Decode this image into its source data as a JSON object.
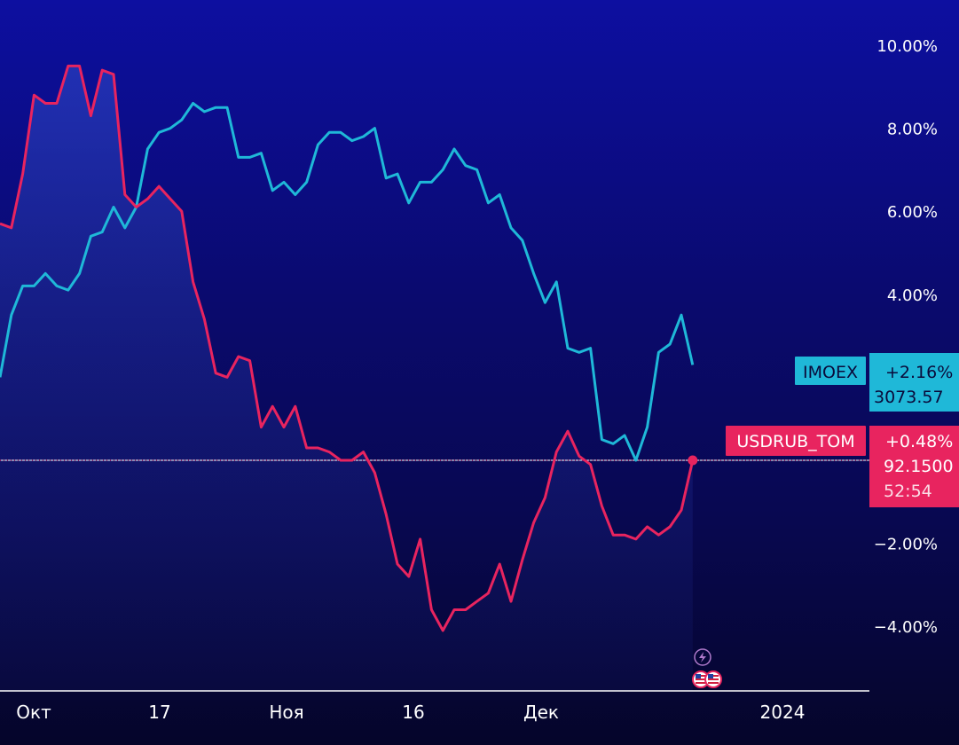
{
  "chart_data": {
    "type": "line",
    "y_unit": "%",
    "ylim": [
      -5.5,
      10.5
    ],
    "y_ticks": [
      "10.00%",
      "8.00%",
      "6.00%",
      "4.00%",
      "−2.00%",
      "−4.00%"
    ],
    "y_tick_values": [
      10,
      8,
      6,
      4,
      -2,
      -4
    ],
    "x_ticks": [
      "Окт",
      "17",
      "Ноя",
      "16",
      "Дек",
      "2024"
    ],
    "grid": false,
    "series": [
      {
        "name": "IMOEX",
        "color": "#1fb8d8",
        "change_label": "+2.16%",
        "price_label": "3073.57",
        "values": [
          2.0,
          3.5,
          4.2,
          4.2,
          4.5,
          4.2,
          4.1,
          4.5,
          5.4,
          5.5,
          6.1,
          5.6,
          6.1,
          7.5,
          7.9,
          8.0,
          8.2,
          8.6,
          8.4,
          8.5,
          8.5,
          7.3,
          7.3,
          7.4,
          6.5,
          6.7,
          6.4,
          6.7,
          7.6,
          7.9,
          7.9,
          7.7,
          7.8,
          8.0,
          6.8,
          6.9,
          6.2,
          6.7,
          6.7,
          7.0,
          7.5,
          7.1,
          7.0,
          6.2,
          6.4,
          5.6,
          5.3,
          4.5,
          3.8,
          4.3,
          2.7,
          2.6,
          2.7,
          0.5,
          0.4,
          0.6,
          0.0,
          0.8,
          2.6,
          2.8,
          3.5,
          2.3
        ]
      },
      {
        "name": "USDRUB_TOM",
        "color": "#e8245f",
        "change_label": "+0.48%",
        "price_label": "92.1500",
        "time_label": "52:54",
        "values": [
          5.7,
          5.6,
          6.9,
          8.8,
          8.6,
          8.6,
          9.5,
          9.5,
          8.3,
          9.4,
          9.3,
          6.4,
          6.1,
          6.3,
          6.6,
          6.3,
          6.0,
          4.3,
          3.4,
          2.1,
          2.0,
          2.5,
          2.4,
          0.8,
          1.3,
          0.8,
          1.3,
          0.3,
          0.3,
          0.2,
          0.0,
          0.0,
          0.2,
          -0.3,
          -1.3,
          -2.5,
          -2.8,
          -1.9,
          -3.6,
          -4.1,
          -3.6,
          -3.6,
          -3.4,
          -3.2,
          -2.5,
          -3.4,
          -2.4,
          -1.5,
          -0.9,
          0.2,
          0.7,
          0.1,
          -0.1,
          -1.1,
          -1.8,
          -1.8,
          -1.9,
          -1.6,
          -1.8,
          -1.6,
          -1.2,
          0.0
        ]
      }
    ]
  },
  "badges": {
    "imoex_name": "IMOEX",
    "imoex_change": "+2.16%",
    "imoex_price": "3073.57",
    "usd_name": "USDRUB_TOM",
    "usd_change": "+0.48%",
    "usd_price": "92.1500",
    "usd_time": "52:54"
  },
  "icons": {
    "event_icon": "lightning-icon",
    "flag_icon": "us-flag-icon"
  }
}
